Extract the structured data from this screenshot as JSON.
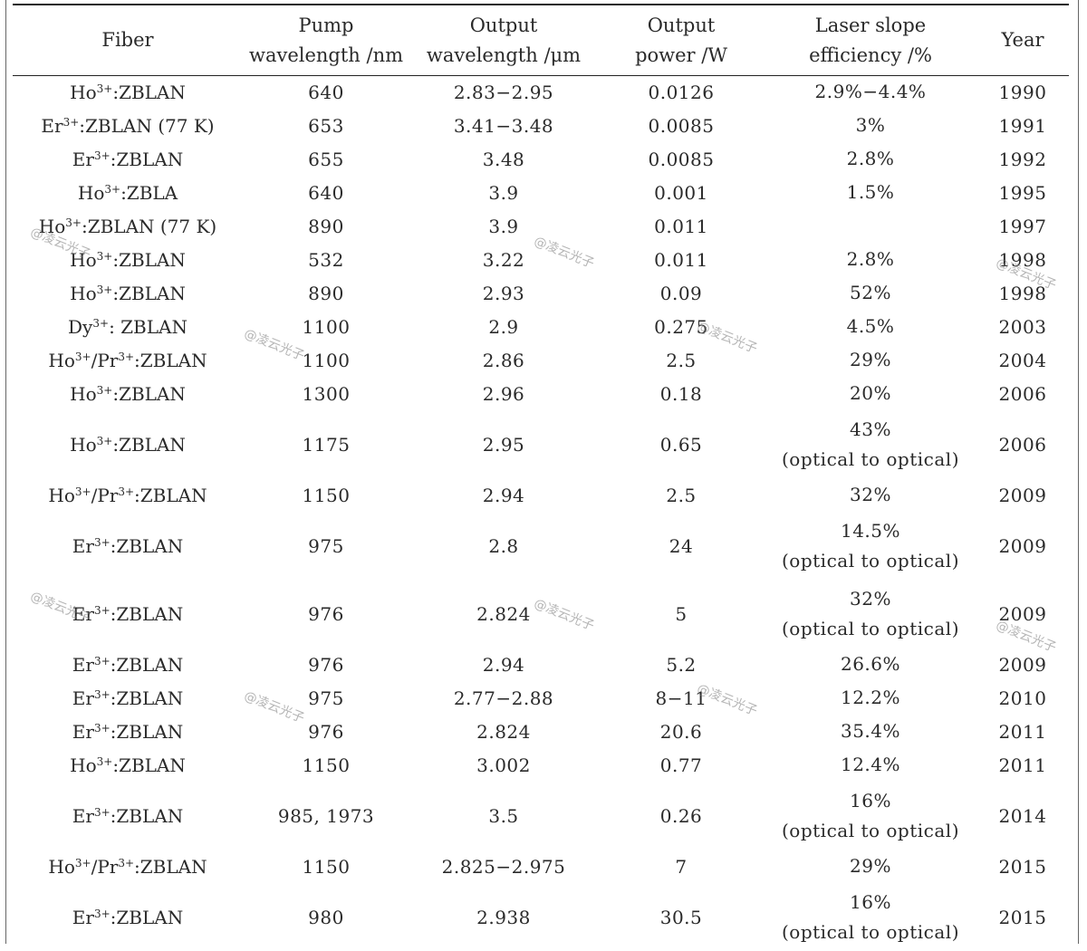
{
  "table": {
    "headers": [
      [
        "Fiber"
      ],
      [
        "Pump",
        "wavelength /nm"
      ],
      [
        "Output",
        "wavelength /μm"
      ],
      [
        "Output",
        "power /W"
      ],
      [
        "Laser slope",
        "efficiency /%"
      ],
      [
        "Year"
      ]
    ],
    "rows": [
      {
        "fiber": [
          [
            "Ho",
            "3+"
          ],
          [
            ":ZBLAN",
            ""
          ]
        ],
        "pump": "640",
        "wl": "2.83−2.95",
        "power": "0.0126",
        "eff": [
          "2.9%−4.4%"
        ],
        "year": "1990"
      },
      {
        "fiber": [
          [
            "Er",
            "3+"
          ],
          [
            ":ZBLAN (77 K)",
            ""
          ]
        ],
        "pump": "653",
        "wl": "3.41−3.48",
        "power": "0.0085",
        "eff": [
          "3%"
        ],
        "year": "1991"
      },
      {
        "fiber": [
          [
            "Er",
            "3+"
          ],
          [
            ":ZBLAN",
            ""
          ]
        ],
        "pump": "655",
        "wl": "3.48",
        "power": "0.0085",
        "eff": [
          "2.8%"
        ],
        "year": "1992"
      },
      {
        "fiber": [
          [
            "Ho",
            "3+"
          ],
          [
            ":ZBLA",
            ""
          ]
        ],
        "pump": "640",
        "wl": "3.9",
        "power": "0.001",
        "eff": [
          "1.5%"
        ],
        "year": "1995"
      },
      {
        "fiber": [
          [
            "Ho",
            "3+"
          ],
          [
            ":ZBLAN (77 K)",
            ""
          ]
        ],
        "pump": "890",
        "wl": "3.9",
        "power": "0.011",
        "eff": [
          ""
        ],
        "year": "1997"
      },
      {
        "fiber": [
          [
            "Ho",
            "3+"
          ],
          [
            ":ZBLAN",
            ""
          ]
        ],
        "pump": "532",
        "wl": "3.22",
        "power": "0.011",
        "eff": [
          "2.8%"
        ],
        "year": "1998"
      },
      {
        "fiber": [
          [
            "Ho",
            "3+"
          ],
          [
            ":ZBLAN",
            ""
          ]
        ],
        "pump": "890",
        "wl": "2.93",
        "power": "0.09",
        "eff": [
          "52%"
        ],
        "year": "1998"
      },
      {
        "fiber": [
          [
            "Dy",
            "3+"
          ],
          [
            ": ZBLAN",
            ""
          ]
        ],
        "pump": "1100",
        "wl": "2.9",
        "power": "0.275",
        "eff": [
          "4.5%"
        ],
        "year": "2003"
      },
      {
        "fiber": [
          [
            "Ho",
            "3+"
          ],
          [
            "/Pr",
            "3+"
          ],
          [
            ":ZBLAN",
            ""
          ]
        ],
        "pump": "1100",
        "wl": "2.86",
        "power": "2.5",
        "eff": [
          "29%"
        ],
        "year": "2004"
      },
      {
        "fiber": [
          [
            "Ho",
            "3+"
          ],
          [
            ":ZBLAN",
            ""
          ]
        ],
        "pump": "1300",
        "wl": "2.96",
        "power": "0.18",
        "eff": [
          "20%"
        ],
        "year": "2006"
      },
      {
        "fiber": [
          [
            "Ho",
            "3+"
          ],
          [
            ":ZBLAN",
            ""
          ]
        ],
        "pump": "1175",
        "wl": "2.95",
        "power": "0.65",
        "eff": [
          "43%",
          "(optical to optical)"
        ],
        "year": "2006"
      },
      {
        "fiber": [
          [
            "Ho",
            "3+"
          ],
          [
            "/Pr",
            "3+"
          ],
          [
            ":ZBLAN",
            ""
          ]
        ],
        "pump": "1150",
        "wl": "2.94",
        "power": "2.5",
        "eff": [
          "32%"
        ],
        "year": "2009"
      },
      {
        "fiber": [
          [
            "Er",
            "3+"
          ],
          [
            ":ZBLAN",
            ""
          ]
        ],
        "pump": "975",
        "wl": "2.8",
        "power": "24",
        "eff": [
          "14.5%",
          "(optical to optical)"
        ],
        "year": "2009"
      },
      {
        "fiber": [
          [
            "Er",
            "3+"
          ],
          [
            ":ZBLAN",
            ""
          ]
        ],
        "pump": "976",
        "wl": "2.824",
        "power": "5",
        "eff": [
          "32%",
          "(optical to optical)"
        ],
        "year": "2009"
      },
      {
        "fiber": [
          [
            "Er",
            "3+"
          ],
          [
            ":ZBLAN",
            ""
          ]
        ],
        "pump": "976",
        "wl": "2.94",
        "power": "5.2",
        "eff": [
          "26.6%"
        ],
        "year": "2009"
      },
      {
        "fiber": [
          [
            "Er",
            "3+"
          ],
          [
            ":ZBLAN",
            ""
          ]
        ],
        "pump": "975",
        "wl": "2.77−2.88",
        "power": "8−11",
        "eff": [
          "12.2%"
        ],
        "year": "2010"
      },
      {
        "fiber": [
          [
            "Er",
            "3+"
          ],
          [
            ":ZBLAN",
            ""
          ]
        ],
        "pump": "976",
        "wl": "2.824",
        "power": "20.6",
        "eff": [
          "35.4%"
        ],
        "year": "2011"
      },
      {
        "fiber": [
          [
            "Ho",
            "3+"
          ],
          [
            ":ZBLAN",
            ""
          ]
        ],
        "pump": "1150",
        "wl": "3.002",
        "power": "0.77",
        "eff": [
          "12.4%"
        ],
        "year": "2011"
      },
      {
        "fiber": [
          [
            "Er",
            "3+"
          ],
          [
            ":ZBLAN",
            ""
          ]
        ],
        "pump": "985, 1973",
        "wl": "3.5",
        "power": "0.26",
        "eff": [
          "16%",
          "(optical to optical)"
        ],
        "year": "2014"
      },
      {
        "fiber": [
          [
            "Ho",
            "3+"
          ],
          [
            "/Pr",
            "3+"
          ],
          [
            ":ZBLAN",
            ""
          ]
        ],
        "pump": "1150",
        "wl": "2.825−2.975",
        "power": "7",
        "eff": [
          "29%"
        ],
        "year": "2015"
      },
      {
        "fiber": [
          [
            "Er",
            "3+"
          ],
          [
            ":ZBLAN",
            ""
          ]
        ],
        "pump": "980",
        "wl": "2.938",
        "power": "30.5",
        "eff": [
          "16%",
          "(optical to optical)"
        ],
        "year": "2015"
      }
    ]
  },
  "watermark": {
    "text": "@凌云光子"
  }
}
